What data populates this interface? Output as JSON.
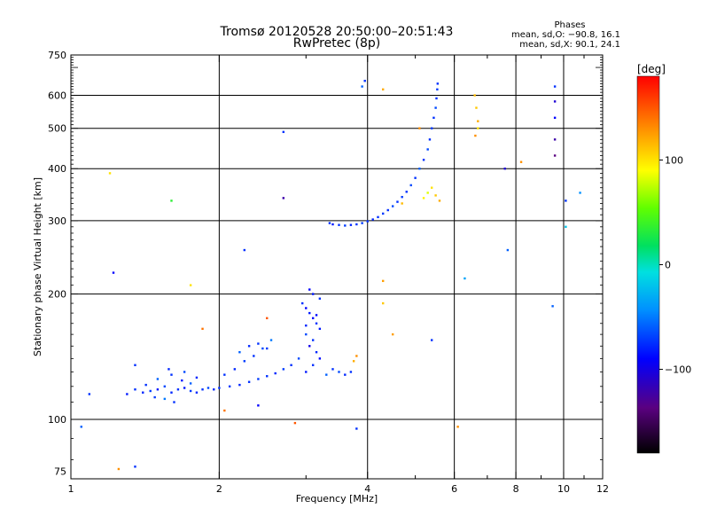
{
  "chart_data": {
    "type": "scatter",
    "title": "Tromsø 20120528 20:50:00–20:51:43",
    "subtitle": "RwPretec (8p)",
    "xlabel": "Frequency [MHz]",
    "ylabel": "Stationary phase Virtual Height [km]",
    "x_scale": "log",
    "y_scale": "log",
    "xlim": [
      1,
      12
    ],
    "ylim": [
      72,
      750
    ],
    "x_ticks": [
      1,
      2,
      4,
      6,
      8,
      10,
      12
    ],
    "y_ticks": [
      75,
      100,
      200,
      300,
      400,
      500,
      600,
      750
    ],
    "x_gridlines": [
      2,
      4,
      6,
      8,
      10
    ],
    "y_gridlines": [
      100,
      200,
      300,
      400,
      500,
      600
    ],
    "grid": true,
    "phases_box": {
      "title": "Phases",
      "line1": "mean, sd,O: −90.8, 16.1",
      "line2": "mean, sd,X:  90.1, 24.1"
    },
    "colorbar": {
      "label": "[deg]",
      "range": [
        -180,
        180
      ],
      "ticks": [
        100,
        0,
        -100
      ]
    },
    "series": [
      {
        "points": [
          [
            1.09,
            115,
            -110
          ],
          [
            1.3,
            115,
            -115
          ],
          [
            1.35,
            118,
            -110
          ],
          [
            1.4,
            116,
            -112
          ],
          [
            1.45,
            117,
            -108
          ],
          [
            1.5,
            118,
            -115
          ],
          [
            1.55,
            120,
            -105
          ],
          [
            1.6,
            116,
            -112
          ],
          [
            1.65,
            118,
            -110
          ],
          [
            1.7,
            119,
            -115
          ],
          [
            1.75,
            117,
            -108
          ],
          [
            1.8,
            116,
            -112
          ],
          [
            1.85,
            118,
            -110
          ],
          [
            1.9,
            119,
            -105
          ],
          [
            1.95,
            118,
            -112
          ],
          [
            2.0,
            119,
            -110
          ],
          [
            2.1,
            120,
            -108
          ],
          [
            2.2,
            121,
            -112
          ],
          [
            2.3,
            123,
            -110
          ],
          [
            2.4,
            125,
            -108
          ],
          [
            2.5,
            127,
            -110
          ],
          [
            2.6,
            129,
            -112
          ],
          [
            2.7,
            132,
            -108
          ],
          [
            2.8,
            135,
            -110
          ],
          [
            2.9,
            140,
            -105
          ],
          [
            1.5,
            125,
            -100
          ],
          [
            1.6,
            128,
            -110
          ],
          [
            1.7,
            130,
            -105
          ],
          [
            1.55,
            112,
            -95
          ],
          [
            1.62,
            110,
            -110
          ],
          [
            1.68,
            124,
            -115
          ],
          [
            1.75,
            122,
            -100
          ],
          [
            1.8,
            126,
            -112
          ],
          [
            1.42,
            121,
            -110
          ],
          [
            1.48,
            113,
            -108
          ],
          [
            1.58,
            132,
            -112
          ],
          [
            2.05,
            128,
            -110
          ],
          [
            2.15,
            132,
            -112
          ],
          [
            2.25,
            138,
            -108
          ],
          [
            2.35,
            142,
            -110
          ],
          [
            2.45,
            148,
            -105
          ],
          [
            2.2,
            145,
            -100
          ],
          [
            2.3,
            150,
            -112
          ],
          [
            2.4,
            152,
            -110
          ],
          [
            2.5,
            148,
            -108
          ],
          [
            2.55,
            155,
            -95
          ],
          [
            2.95,
            190,
            -110
          ],
          [
            3.0,
            185,
            -120
          ],
          [
            3.05,
            180,
            -115
          ],
          [
            3.1,
            175,
            -120
          ],
          [
            3.15,
            170,
            -110
          ],
          [
            3.2,
            165,
            -115
          ],
          [
            3.0,
            160,
            -105
          ],
          [
            3.1,
            155,
            -110
          ],
          [
            3.05,
            150,
            -125
          ],
          [
            3.15,
            145,
            -112
          ],
          [
            3.2,
            140,
            -118
          ],
          [
            3.1,
            135,
            -110
          ],
          [
            3.0,
            130,
            -115
          ],
          [
            3.05,
            205,
            -120
          ],
          [
            3.1,
            200,
            -115
          ],
          [
            3.2,
            195,
            -110
          ],
          [
            3.15,
            178,
            -118
          ],
          [
            3.0,
            168,
            -112
          ],
          [
            3.3,
            128,
            -100
          ],
          [
            3.4,
            132,
            -110
          ],
          [
            3.5,
            130,
            -105
          ],
          [
            3.6,
            128,
            -112
          ],
          [
            3.7,
            130,
            -110
          ],
          [
            3.75,
            138,
            120
          ],
          [
            3.8,
            142,
            130
          ],
          [
            3.35,
            296,
            -110
          ],
          [
            3.4,
            294,
            -115
          ],
          [
            3.5,
            293,
            -110
          ],
          [
            3.6,
            292,
            -108
          ],
          [
            3.7,
            293,
            -112
          ],
          [
            3.8,
            294,
            -110
          ],
          [
            3.9,
            296,
            -108
          ],
          [
            4.0,
            299,
            -110
          ],
          [
            4.1,
            302,
            -112
          ],
          [
            4.2,
            306,
            -110
          ],
          [
            4.3,
            312,
            -108
          ],
          [
            4.4,
            318,
            -110
          ],
          [
            4.5,
            325,
            -105
          ],
          [
            4.6,
            333,
            -110
          ],
          [
            4.7,
            342,
            -108
          ],
          [
            4.8,
            352,
            -110
          ],
          [
            4.9,
            365,
            -105
          ],
          [
            5.0,
            380,
            -110
          ],
          [
            5.1,
            400,
            -100
          ],
          [
            5.2,
            420,
            -110
          ],
          [
            5.3,
            445,
            -105
          ],
          [
            5.35,
            470,
            -110
          ],
          [
            5.4,
            500,
            -108
          ],
          [
            5.45,
            530,
            -110
          ],
          [
            5.5,
            560,
            -105
          ],
          [
            5.52,
            590,
            -110
          ],
          [
            5.54,
            620,
            -108
          ],
          [
            5.55,
            640,
            -110
          ],
          [
            5.3,
            350,
            80
          ],
          [
            5.4,
            360,
            100
          ],
          [
            5.5,
            345,
            110
          ],
          [
            5.2,
            340,
            95
          ],
          [
            5.6,
            335,
            120
          ],
          [
            6.6,
            600,
            115
          ],
          [
            6.65,
            560,
            110
          ],
          [
            6.7,
            520,
            120
          ],
          [
            6.62,
            480,
            130
          ],
          [
            6.7,
            500,
            100
          ],
          [
            3.9,
            630,
            -100
          ],
          [
            3.95,
            650,
            -110
          ],
          [
            4.3,
            620,
            120
          ],
          [
            4.7,
            330,
            115
          ],
          [
            5.1,
            500,
            130
          ],
          [
            9.6,
            630,
            -110
          ],
          [
            9.6,
            580,
            -130
          ],
          [
            9.6,
            530,
            -120
          ],
          [
            9.6,
            470,
            -140
          ],
          [
            9.6,
            430,
            -150
          ],
          [
            1.2,
            390,
            100
          ],
          [
            1.22,
            225,
            -120
          ],
          [
            1.6,
            335,
            20
          ],
          [
            2.7,
            490,
            -110
          ],
          [
            2.7,
            340,
            -140
          ],
          [
            2.5,
            175,
            150
          ],
          [
            1.75,
            210,
            100
          ],
          [
            1.85,
            165,
            140
          ],
          [
            1.35,
            135,
            -110
          ],
          [
            1.05,
            96,
            -100
          ],
          [
            2.05,
            105,
            140
          ],
          [
            2.25,
            255,
            -110
          ],
          [
            2.4,
            108,
            -120
          ],
          [
            2.85,
            98,
            150
          ],
          [
            3.8,
            95,
            -110
          ],
          [
            4.3,
            215,
            125
          ],
          [
            4.3,
            190,
            110
          ],
          [
            4.5,
            160,
            125
          ],
          [
            5.4,
            155,
            -110
          ],
          [
            6.1,
            96,
            130
          ],
          [
            6.3,
            218,
            -80
          ],
          [
            7.6,
            400,
            -130
          ],
          [
            7.7,
            255,
            -100
          ],
          [
            8.2,
            415,
            130
          ],
          [
            9.5,
            187,
            -100
          ],
          [
            10.1,
            290,
            -60
          ],
          [
            10.1,
            335,
            -110
          ],
          [
            10.8,
            350,
            -90
          ],
          [
            1.25,
            76,
            130
          ],
          [
            1.35,
            77,
            -110
          ]
        ]
      }
    ]
  }
}
